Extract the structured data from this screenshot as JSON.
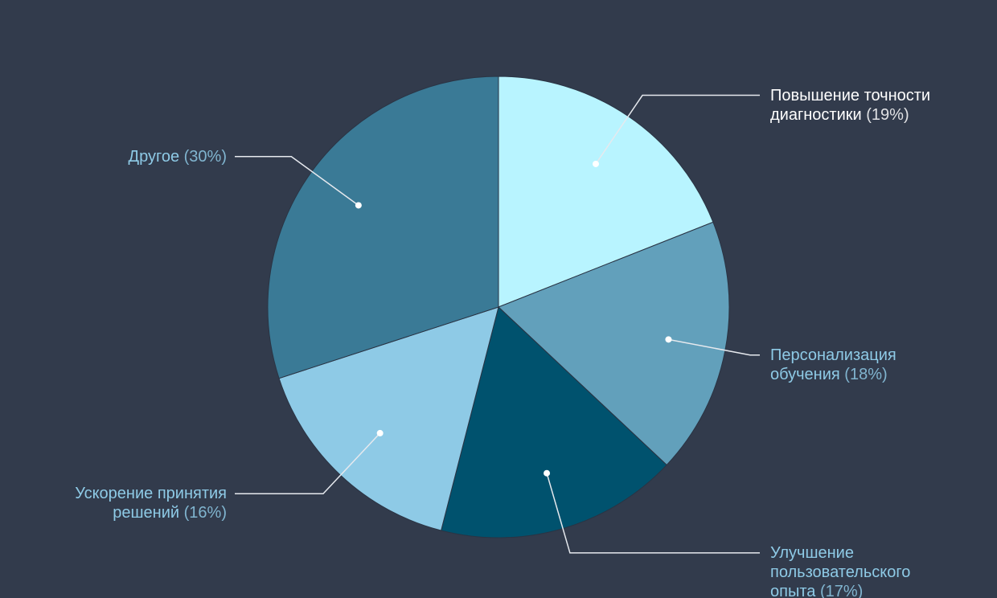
{
  "chart_data": {
    "type": "pie",
    "categories": [
      "Повышение точности диагностики",
      "Персонализация обучения",
      "Улучшение пользовательского опыта",
      "Ускорение принятия решений",
      "Другое"
    ],
    "values": [
      19,
      18,
      17,
      16,
      30
    ],
    "value_labels": [
      "(19%)",
      "(18%)",
      "(17%)",
      "(16%)",
      "(30%)"
    ],
    "colors": [
      "#b8f4ff",
      "#62a0bb",
      "#00526e",
      "#8ecae6",
      "#3a7a96"
    ],
    "label_colors": [
      "#ffffff",
      "#8ecae6",
      "#8ecae6",
      "#8ecae6",
      "#8ecae6"
    ]
  }
}
